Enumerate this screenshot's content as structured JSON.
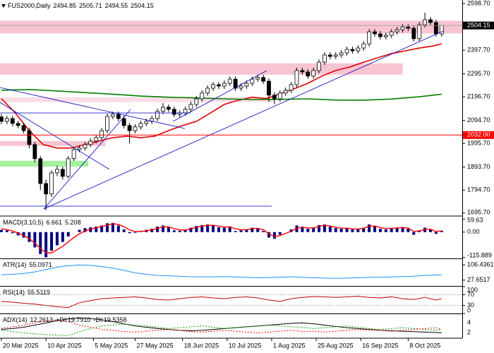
{
  "chart_data": [
    {
      "type": "candlestick",
      "title": "FUS2000,Daily",
      "header_values": [
        2494.85,
        2505.71,
        2494.55,
        2504.15
      ],
      "open": [
        2110,
        2091,
        2103,
        2082,
        2073,
        2051,
        1991,
        1930,
        1823,
        1778,
        1869,
        1884,
        1854,
        1930,
        1969,
        1976,
        1991,
        2006,
        2021,
        2051,
        2112,
        2121,
        2103,
        2073,
        2051,
        2067,
        2082,
        2091,
        2103,
        2134,
        2152,
        2143,
        2121,
        2127,
        2143,
        2164,
        2188,
        2213,
        2234,
        2249,
        2243,
        2255,
        2273,
        2234,
        2243,
        2255,
        2273,
        2280,
        2264,
        2204,
        2188,
        2213,
        2225,
        2249,
        2310,
        2304,
        2286,
        2310,
        2346,
        2377,
        2371,
        2377,
        2386,
        2401,
        2395,
        2407,
        2425,
        2477,
        2468,
        2456,
        2462,
        2477,
        2486,
        2498,
        2492,
        2447,
        2507,
        2529,
        2517,
        2468
      ],
      "high": [
        2122,
        2115,
        2115,
        2094,
        2085,
        2063,
        2003,
        1942,
        1840,
        1880,
        1900,
        1896,
        1942,
        1980,
        1988,
        2003,
        2018,
        2033,
        2063,
        2124,
        2133,
        2133,
        2115,
        2085,
        2079,
        2094,
        2103,
        2115,
        2146,
        2170,
        2164,
        2155,
        2139,
        2155,
        2176,
        2200,
        2225,
        2246,
        2261,
        2261,
        2267,
        2285,
        2285,
        2255,
        2267,
        2285,
        2292,
        2292,
        2276,
        2216,
        2225,
        2237,
        2261,
        2322,
        2322,
        2316,
        2322,
        2358,
        2389,
        2389,
        2389,
        2398,
        2413,
        2413,
        2419,
        2437,
        2489,
        2489,
        2480,
        2474,
        2489,
        2498,
        2510,
        2510,
        2504,
        2519,
        2560,
        2541,
        2529,
        2505.71
      ],
      "low": [
        2079,
        2079,
        2070,
        2061,
        2039,
        1975,
        1915,
        1795,
        1708,
        1765,
        1855,
        1840,
        1845,
        1920,
        1958,
        1965,
        1980,
        1995,
        2010,
        2040,
        2100,
        2091,
        2061,
        1995,
        2039,
        2055,
        2070,
        2079,
        2091,
        2122,
        2131,
        2109,
        2109,
        2115,
        2131,
        2152,
        2176,
        2201,
        2222,
        2231,
        2231,
        2243,
        2222,
        2222,
        2231,
        2243,
        2261,
        2252,
        2175,
        2165,
        2176,
        2201,
        2213,
        2237,
        2292,
        2274,
        2274,
        2298,
        2334,
        2359,
        2359,
        2365,
        2374,
        2383,
        2383,
        2395,
        2413,
        2456,
        2444,
        2444,
        2450,
        2465,
        2474,
        2480,
        2435,
        2435,
        2495,
        2505,
        2456,
        2456
      ],
      "close": [
        2091,
        2103,
        2082,
        2073,
        2051,
        1991,
        1930,
        1823,
        1778,
        1869,
        1884,
        1854,
        1930,
        1969,
        1976,
        1991,
        2006,
        2021,
        2051,
        2112,
        2121,
        2103,
        2073,
        2051,
        2067,
        2082,
        2091,
        2103,
        2134,
        2152,
        2143,
        2121,
        2127,
        2143,
        2164,
        2188,
        2213,
        2234,
        2249,
        2243,
        2255,
        2273,
        2234,
        2243,
        2255,
        2273,
        2280,
        2264,
        2204,
        2188,
        2213,
        2225,
        2249,
        2310,
        2304,
        2286,
        2310,
        2346,
        2377,
        2371,
        2377,
        2386,
        2401,
        2395,
        2407,
        2425,
        2477,
        2468,
        2456,
        2462,
        2477,
        2486,
        2498,
        2492,
        2447,
        2507,
        2529,
        2517,
        2468,
        2504.15
      ],
      "bull_color": "#ffffff",
      "bear_color": "#000000",
      "edge_color": "#000000",
      "xlim": [
        -0.25,
        82.7
      ],
      "xticks": [
        {
          "value": 0,
          "label": "20 Mar 2025"
        },
        {
          "value": 8,
          "label": "10 Apr 2025"
        },
        {
          "value": 16.5,
          "label": "5 May 2025"
        },
        {
          "value": 24,
          "label": "27 May 2025"
        },
        {
          "value": 32.5,
          "label": "18 Jun 2025"
        },
        {
          "value": 40.5,
          "label": "10 Jul 2025"
        },
        {
          "value": 48.5,
          "label": "1 Aug 2025"
        },
        {
          "value": 56.5,
          "label": "25 Aug 2025"
        },
        {
          "value": 64.5,
          "label": "16 Sep 2025"
        },
        {
          "value": 73,
          "label": "8 Oct 2025"
        }
      ],
      "ylim": [
        1686,
        2614
      ],
      "yticks": [
        {
          "value": 2598.7,
          "label": "2598.70"
        },
        {
          "value": 2397.7,
          "label": "2397.70"
        },
        {
          "value": 2295.7,
          "label": "2295.70"
        },
        {
          "value": 2196.7,
          "label": "2196.70"
        },
        {
          "value": 2094.7,
          "label": "2094.70"
        },
        {
          "value": 1995.7,
          "label": "1995.70"
        },
        {
          "value": 1893.7,
          "label": "1893.70"
        },
        {
          "value": 1794.7,
          "label": "1794.70"
        },
        {
          "value": 1695.7,
          "label": "1695.70"
        }
      ],
      "last_price": 2504.15,
      "level": {
        "value": 2032,
        "label": "2032.00",
        "color": "#ff0000"
      },
      "zones": [
        {
          "x": [
            -0.25,
            82.7
          ],
          "range": [
            2470,
            2525
          ],
          "color": "#f8c4d2"
        },
        {
          "x": [
            -0.25,
            72
          ],
          "range": [
            2292,
            2341
          ],
          "color": "#f8c4d2"
        },
        {
          "x": [
            -0.25,
            49
          ],
          "range": [
            2174,
            2195
          ],
          "color": "#fbdde5"
        },
        {
          "x": [
            -0.25,
            18.7
          ],
          "range": [
            1985,
            2006
          ],
          "color": "#f8c4d2"
        },
        {
          "x": [
            -0.25,
            15.6
          ],
          "range": [
            1896,
            1921
          ],
          "color": "#a6f09e"
        }
      ],
      "overlays": [
        {
          "color": "#e00000",
          "x": [
            0,
            2.5,
            5,
            7.5,
            10,
            12.5,
            15,
            17.5,
            20,
            22.5,
            25,
            27.5,
            30,
            32.5,
            35,
            37.5,
            40,
            42.5,
            45,
            47.5,
            50,
            52.5,
            55,
            57.5,
            60,
            62.5,
            65,
            67.5,
            70,
            72.5,
            75,
            77.5,
            79
          ],
          "values": [
            2189,
            2127,
            2051,
            1991,
            1976,
            1976,
            1991,
            2006,
            2021,
            2027,
            2021,
            2027,
            2051,
            2073,
            2091,
            2127,
            2164,
            2182,
            2195,
            2189,
            2210,
            2231,
            2255,
            2286,
            2310,
            2325,
            2346,
            2365,
            2383,
            2395,
            2407,
            2416,
            2425
          ]
        },
        {
          "color": "#008000",
          "x": [
            0,
            5,
            10,
            15,
            20,
            25,
            30,
            35,
            40,
            45,
            50,
            55,
            60,
            65,
            70,
            75,
            79
          ],
          "values": [
            2225,
            2228,
            2222,
            2215,
            2208,
            2200,
            2195,
            2192,
            2188,
            2185,
            2186,
            2188,
            2183,
            2182,
            2187,
            2197,
            2208
          ]
        }
      ]
    },
    {
      "type": "macd",
      "ylim": [
        -120,
        70
      ],
      "yticks": [
        59.63,
        {
          "value": 0,
          "label": "0.00"
        },
        -115.889
      ],
      "series": [
        {
          "name": "MACD(3,10,5)",
          "color": "#000080",
          "values": [
            10,
            8,
            -5,
            -15,
            -25,
            -45,
            -70,
            -100,
            -115,
            -85,
            -60,
            -45,
            -20,
            0,
            10,
            18,
            22,
            25,
            30,
            40,
            42,
            30,
            12,
            -5,
            -3,
            5,
            10,
            15,
            25,
            30,
            22,
            8,
            6,
            12,
            20,
            28,
            32,
            35,
            30,
            22,
            20,
            25,
            5,
            8,
            12,
            20,
            18,
            5,
            -25,
            -30,
            -12,
            0,
            12,
            30,
            25,
            15,
            20,
            32,
            35,
            25,
            18,
            15,
            18,
            12,
            14,
            20,
            35,
            28,
            15,
            12,
            18,
            20,
            22,
            15,
            -12,
            8,
            20,
            12,
            -8,
            6.661
          ]
        },
        {
          "color": "#ff0000",
          "values": [
            15,
            12,
            5,
            -5,
            -15,
            -30,
            -50,
            -75,
            -95,
            -95,
            -80,
            -65,
            -45,
            -25,
            -8,
            5,
            14,
            20,
            25,
            32,
            38,
            35,
            24,
            10,
            2,
            3,
            6,
            10,
            17,
            24,
            24,
            16,
            10,
            10,
            15,
            22,
            27,
            31,
            31,
            27,
            23,
            24,
            15,
            11,
            11,
            16,
            17,
            11,
            -8,
            -20,
            -16,
            -6,
            4,
            18,
            22,
            19,
            19,
            26,
            31,
            28,
            22,
            18,
            18,
            15,
            14,
            17,
            27,
            28,
            21,
            16,
            17,
            19,
            21,
            18,
            3,
            5,
            13,
            13,
            3,
            5.208
          ]
        }
      ]
    },
    {
      "type": "line",
      "ylim": [
        -2.4,
        136.4
      ],
      "yticks": [
        106.4361,
        27.6517
      ],
      "x": [
        0,
        2,
        4,
        6,
        8,
        10,
        12,
        14,
        16,
        18,
        20,
        22,
        24,
        26,
        28,
        30,
        32,
        34,
        36,
        38,
        40,
        42,
        44,
        46,
        48,
        50,
        52,
        54,
        56,
        58,
        60,
        62,
        64,
        66,
        68,
        70,
        72,
        74,
        76,
        78,
        79
      ],
      "series": [
        {
          "name": "ATR(14)",
          "color": "#1e90ff",
          "values": [
            55,
            58,
            62,
            70,
            82,
            95,
            102,
            106,
            104,
            98,
            90,
            78,
            65,
            58,
            52,
            50,
            48,
            45,
            44,
            45,
            46,
            44,
            42,
            40,
            41,
            43,
            45,
            42,
            40,
            38,
            37,
            38,
            40,
            42,
            43,
            44,
            46,
            48,
            52,
            54,
            55.0971
          ]
        }
      ]
    },
    {
      "type": "line",
      "ylim": [
        0,
        100
      ],
      "yticks": [
        100,
        70,
        30,
        0
      ],
      "grid": true,
      "x": [
        0,
        2,
        4,
        6,
        8,
        10,
        12,
        14,
        16,
        18,
        20,
        22,
        24,
        26,
        28,
        30,
        32,
        34,
        36,
        38,
        40,
        42,
        44,
        46,
        48,
        50,
        52,
        54,
        56,
        58,
        60,
        62,
        64,
        66,
        68,
        70,
        72,
        74,
        76,
        78,
        79
      ],
      "series": [
        {
          "name": "RSI(14)",
          "color": "#c00000",
          "values": [
            45,
            42,
            38,
            35,
            30,
            25,
            22,
            40,
            48,
            55,
            58,
            60,
            62,
            58,
            52,
            50,
            55,
            60,
            62,
            58,
            55,
            60,
            62,
            58,
            50,
            45,
            55,
            60,
            63,
            62,
            60,
            62,
            64,
            60,
            58,
            62,
            55,
            52,
            60,
            50,
            55.5119
          ]
        }
      ]
    },
    {
      "type": "line",
      "ylim": [
        0,
        55
      ],
      "axis_labels": [
        "4",
        "2"
      ],
      "x": [
        0,
        2,
        4,
        6,
        8,
        10,
        12,
        14,
        16,
        18,
        20,
        22,
        24,
        26,
        28,
        30,
        32,
        34,
        36,
        38,
        40,
        42,
        44,
        46,
        48,
        50,
        52,
        54,
        56,
        58,
        60,
        62,
        64,
        66,
        68,
        70,
        72,
        74,
        76,
        78,
        79
      ],
      "series": [
        {
          "name": "ADX(14)",
          "color": "#000000",
          "values": [
            20,
            22,
            25,
            30,
            35,
            40,
            44,
            46,
            45,
            42,
            38,
            33,
            28,
            25,
            22,
            20,
            18,
            17,
            18,
            20,
            22,
            24,
            26,
            28,
            30,
            32,
            34,
            35,
            33,
            30,
            27,
            24,
            22,
            20,
            18,
            17,
            16,
            15,
            14,
            13,
            12.2613
          ]
        },
        {
          "name": "+DI:",
          "color": "#00a000",
          "dash": true,
          "last_label": "19.7910",
          "values": [
            18,
            15,
            12,
            10,
            8,
            7,
            6,
            15,
            22,
            28,
            30,
            32,
            30,
            28,
            25,
            22,
            24,
            26,
            28,
            25,
            22,
            24,
            26,
            28,
            30,
            28,
            26,
            25,
            22,
            24,
            26,
            28,
            25,
            22,
            20,
            22,
            24,
            22,
            20,
            18,
            19.791
          ]
        },
        {
          "name": "-DI:",
          "color": "#ff0000",
          "dash": true,
          "values": [
            22,
            26,
            30,
            35,
            40,
            42,
            38,
            30,
            25,
            20,
            18,
            15,
            14,
            16,
            18,
            20,
            18,
            15,
            14,
            16,
            18,
            16,
            14,
            12,
            14,
            16,
            18,
            15,
            16,
            14,
            16,
            18,
            20,
            19,
            18,
            16,
            18,
            20,
            22,
            24,
            19.5358
          ]
        }
      ]
    }
  ]
}
